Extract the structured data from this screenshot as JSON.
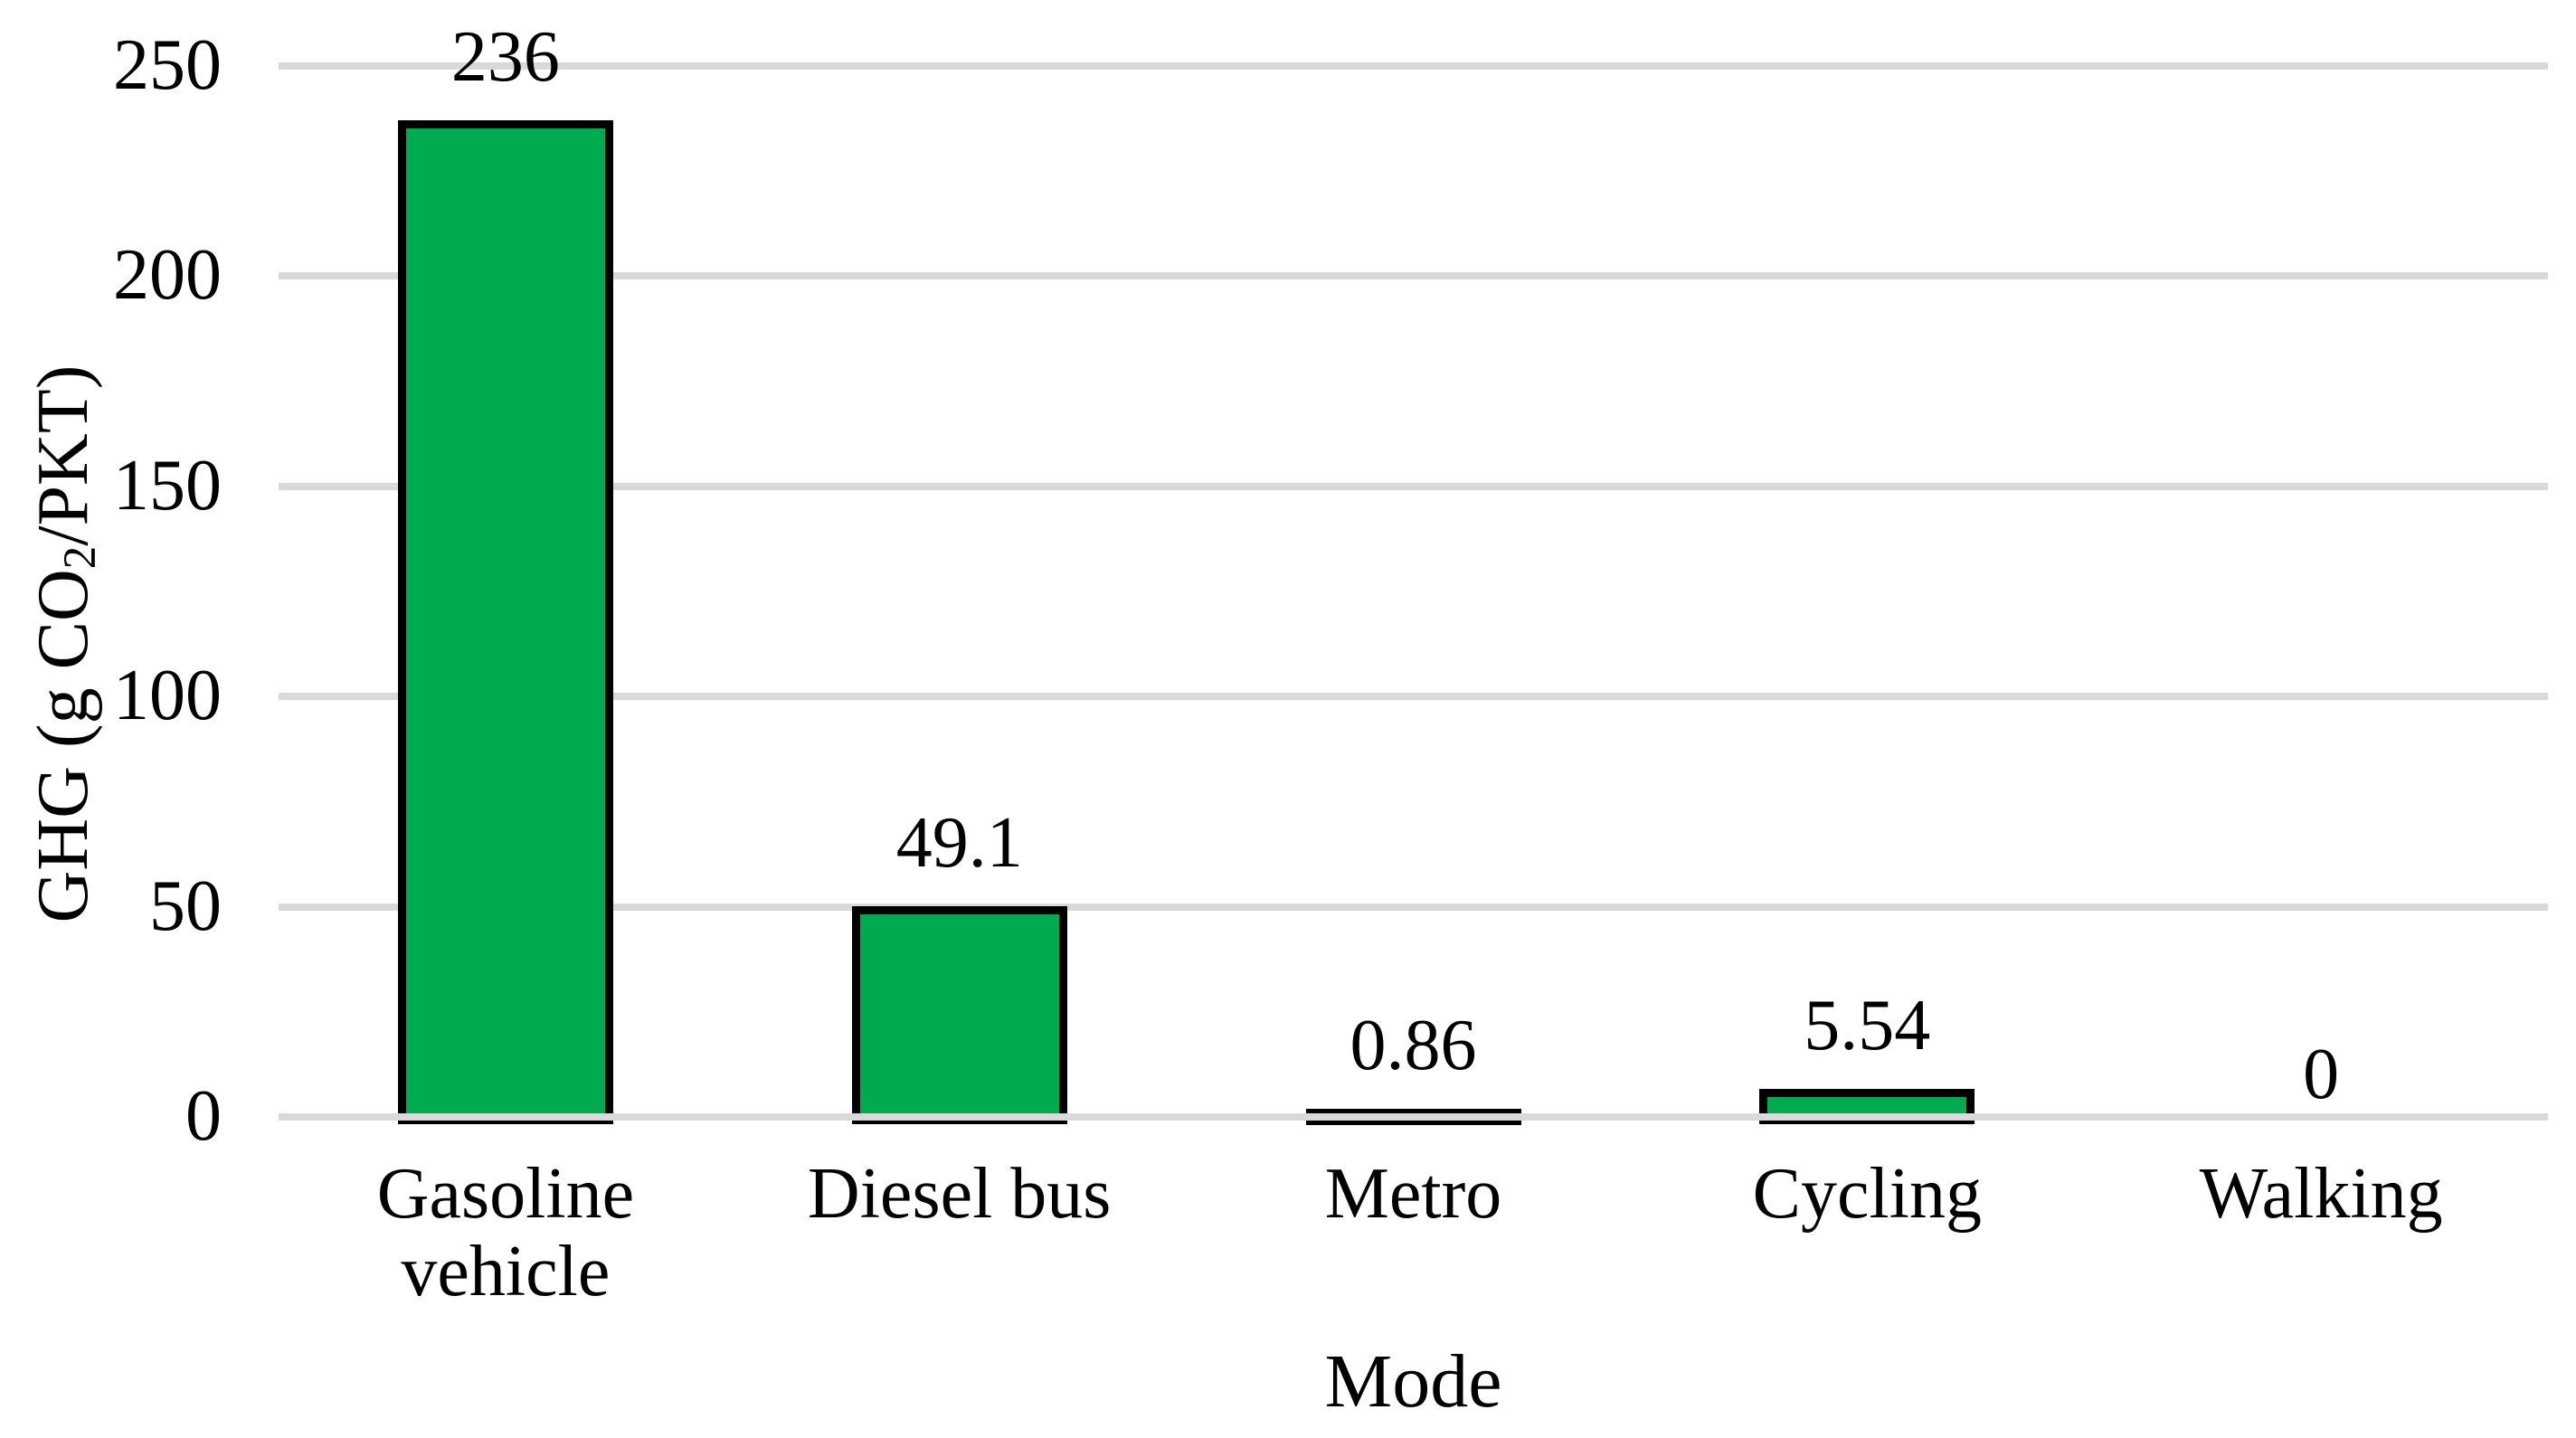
{
  "chart_data": {
    "type": "bar",
    "title": "",
    "categories": [
      "Gasoline vehicle",
      "Diesel bus",
      "Metro",
      "Cycling",
      "Walking"
    ],
    "categories_wrapped": [
      [
        "Gasoline",
        "vehicle"
      ],
      [
        "Diesel bus"
      ],
      [
        "Metro"
      ],
      [
        "Cycling"
      ],
      [
        "Walking"
      ]
    ],
    "values": [
      236,
      49.1,
      0.86,
      5.54,
      0
    ],
    "value_labels": [
      "236",
      "49.1",
      "0.86",
      "5.54",
      "0"
    ],
    "xlabel": "Mode",
    "ylabel_text": "GHG (g CO2/PKT)",
    "ylabel_parts": {
      "pre": "GHG (g CO",
      "sub": "2",
      "post": "/PKT)"
    },
    "yticks": [
      0,
      50,
      100,
      150,
      200,
      250
    ],
    "ytick_labels": [
      "0",
      "50",
      "100",
      "150",
      "200",
      "250"
    ],
    "ylim": [
      0,
      250
    ],
    "grid": true,
    "legend": false,
    "bar_outline": true,
    "colors": {
      "bar_fill": "#00AB50",
      "bar_border": "#000000",
      "gridline": "#D9D9D9",
      "text": "#000000",
      "background": "#FFFFFF"
    }
  }
}
